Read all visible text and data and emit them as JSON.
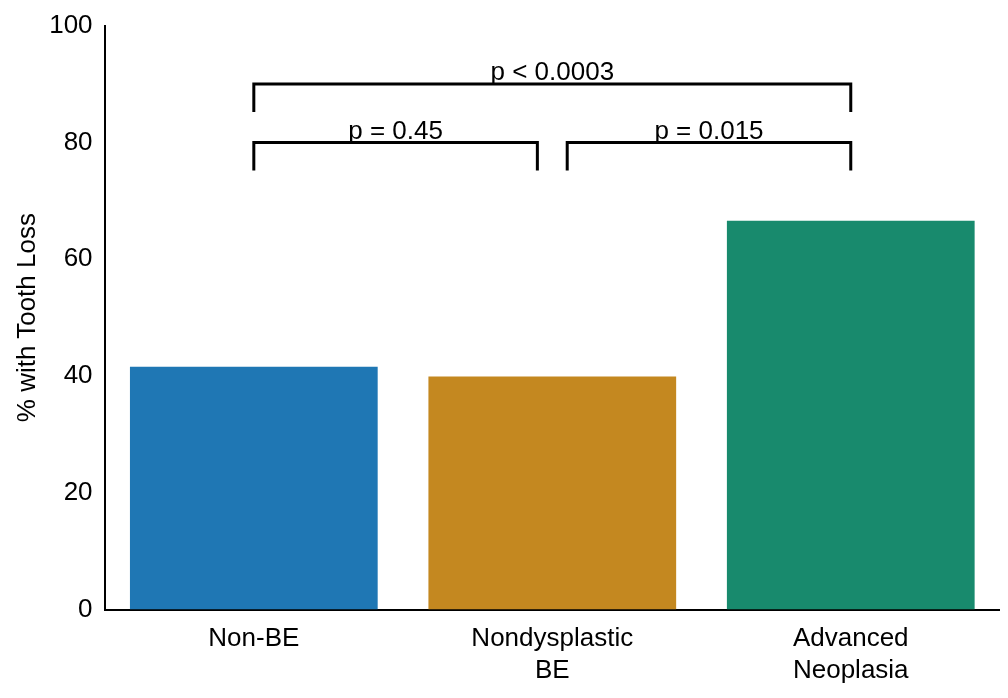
{
  "chart_data": {
    "type": "bar",
    "ylabel": "% with Tooth Loss",
    "categories": [
      "Non-BE",
      "Nondysplastic BE",
      "Advanced Neoplasia"
    ],
    "values": [
      41.6,
      39.9,
      66.6
    ],
    "colors": [
      "#1f77b4",
      "#c48820",
      "#188a6d"
    ],
    "ylim": [
      0,
      100
    ],
    "yticks": [
      0,
      20,
      40,
      60,
      80,
      100
    ],
    "grid": false,
    "legend": false,
    "annotations": [
      "p = 0.45",
      "p = 0.015",
      "p < 0.0003"
    ]
  }
}
